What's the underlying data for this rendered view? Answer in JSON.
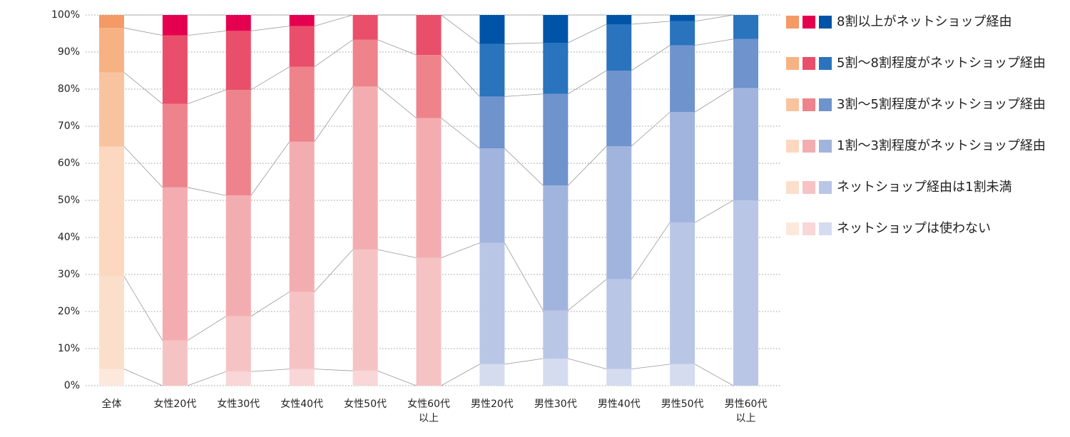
{
  "chart_data": {
    "type": "stacked-bar-100",
    "categories": [
      "全体",
      "女性20代",
      "女性30代",
      "女性40代",
      "女性50代",
      "女性60代\n以上",
      "男性20代",
      "男性30代",
      "男性40代",
      "男性50代",
      "男性60代\n以上"
    ],
    "series": [
      {
        "name": "ネットショップは使わない",
        "values": [
          4.5,
          0,
          3.8,
          4.5,
          4,
          0,
          5.8,
          7.3,
          4.5,
          5.8,
          0
        ],
        "colors": [
          "#fde9dc",
          "#f9d6d7",
          "#f9d6d7",
          "#f9d6d7",
          "#f9d6d7",
          "#f9d6d7",
          "#d5dcef",
          "#d5dcef",
          "#d5dcef",
          "#d5dcef",
          "#d5dcef"
        ]
      },
      {
        "name": "ネットショップ経由は1割未満",
        "values": [
          25,
          12.2,
          14.9,
          20.8,
          32.7,
          34.5,
          32.7,
          13,
          24.2,
          38.2,
          50
        ],
        "colors": [
          "#fcdfcb",
          "#f6c3c5",
          "#f6c3c5",
          "#f6c3c5",
          "#f6c3c5",
          "#f6c3c5",
          "#b9c6e6",
          "#b9c6e6",
          "#b9c6e6",
          "#b9c6e6",
          "#b9c6e6"
        ]
      },
      {
        "name": "1割～3割程度がネットショップ経由",
        "values": [
          35,
          41.3,
          32.6,
          40.5,
          44,
          37.7,
          25.5,
          33.7,
          35.9,
          29.8,
          30.3
        ],
        "colors": [
          "#fbd8bf",
          "#f3adb0",
          "#f3adb0",
          "#f3adb0",
          "#f3adb0",
          "#f3adb0",
          "#a1b4de",
          "#a1b4de",
          "#a1b4de",
          "#a1b4de",
          "#a1b4de"
        ]
      },
      {
        "name": "3割～5割程度がネットショップ経由",
        "values": [
          20,
          22.5,
          28.5,
          20.2,
          12.6,
          17,
          14,
          24.7,
          20.4,
          18,
          13.2
        ],
        "colors": [
          "#f8c4a0",
          "#ee838b",
          "#ee838b",
          "#ee838b",
          "#ee838b",
          "#ee838b",
          "#6f93cd",
          "#6f93cd",
          "#6f93cd",
          "#6f93cd",
          "#6f93cd"
        ]
      },
      {
        "name": "5割～8割程度がネットショップ経由",
        "values": [
          12,
          18.5,
          15.9,
          11,
          6.7,
          10.8,
          14.2,
          13.8,
          12.5,
          6.5,
          6.5
        ],
        "colors": [
          "#f7b283",
          "#e94f6a",
          "#e94f6a",
          "#e94f6a",
          "#e94f6a",
          "#e94f6a",
          "#2a73bd",
          "#2a73bd",
          "#2a73bd",
          "#2a73bd",
          "#2a73bd"
        ]
      },
      {
        "name": "8割以上がネットショップ経由",
        "values": [
          3.5,
          5.5,
          4.3,
          3,
          0,
          0,
          7.8,
          7.5,
          2.5,
          1.7,
          0
        ],
        "colors": [
          "#f39a66",
          "#e5004f",
          "#e5004f",
          "#e5004f",
          "#e5004f",
          "#e5004f",
          "#0054a7",
          "#0054a7",
          "#0054a7",
          "#0054a7",
          "#0054a7"
        ]
      }
    ],
    "ylim": [
      0,
      100
    ],
    "yticks": [
      {
        "value": 0,
        "label": "0%"
      },
      {
        "value": 10,
        "label": "10%"
      },
      {
        "value": 20,
        "label": "20%"
      },
      {
        "value": 30,
        "label": "30%"
      },
      {
        "value": 40,
        "label": "40%"
      },
      {
        "value": 50,
        "label": "50%"
      },
      {
        "value": 60,
        "label": "60%"
      },
      {
        "value": 70,
        "label": "70%"
      },
      {
        "value": 80,
        "label": "80%"
      },
      {
        "value": 90,
        "label": "90%"
      },
      {
        "value": 100,
        "label": "100%"
      }
    ],
    "grid": true,
    "legend": "right"
  }
}
